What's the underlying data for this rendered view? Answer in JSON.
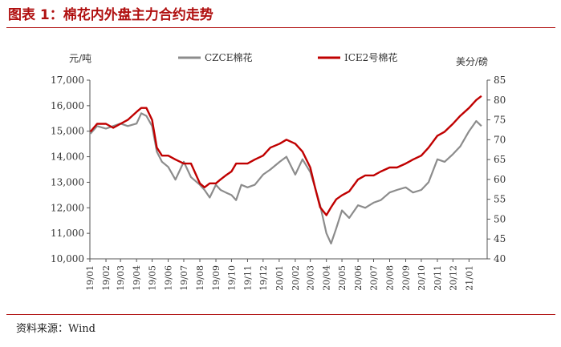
{
  "title": "图表 1：棉花内外盘主力合约走势",
  "source": "资料来源：Wind",
  "colors": {
    "title": "#b01010",
    "czce": "#8c8c8c",
    "ice2": "#c00000"
  },
  "chart_data": {
    "type": "line",
    "left_axis_unit": "元/吨",
    "right_axis_unit": "美分/磅",
    "legend_placement": "top",
    "ylim_left": [
      10000,
      17000
    ],
    "ylim_right": [
      40,
      85
    ],
    "yticks_left": [
      "10,000",
      "11,000",
      "12,000",
      "13,000",
      "14,000",
      "15,000",
      "16,000",
      "17,000"
    ],
    "yticks_right": [
      "40",
      "45",
      "50",
      "55",
      "60",
      "65",
      "70",
      "75",
      "80",
      "85"
    ],
    "x_ticks": [
      "19/01",
      "19/02",
      "19/03",
      "19/04",
      "19/05",
      "19/06",
      "19/07",
      "19/08",
      "19/09",
      "19/10",
      "19/11",
      "19/12",
      "20/01",
      "20/02",
      "20/03",
      "20/04",
      "20/05",
      "20/06",
      "20/07",
      "20/08",
      "20/09",
      "20/10",
      "20/11",
      "20/12",
      "21/01"
    ],
    "grid": false,
    "series": [
      {
        "name": "CZCE棉花",
        "axis": "left",
        "x": [
          "2019-01-02",
          "2019-01-15",
          "2019-02-01",
          "2019-02-15",
          "2019-03-01",
          "2019-03-15",
          "2019-04-01",
          "2019-04-10",
          "2019-04-20",
          "2019-05-01",
          "2019-05-10",
          "2019-05-20",
          "2019-06-01",
          "2019-06-15",
          "2019-07-01",
          "2019-07-15",
          "2019-08-01",
          "2019-08-10",
          "2019-08-20",
          "2019-09-01",
          "2019-09-10",
          "2019-09-20",
          "2019-10-01",
          "2019-10-10",
          "2019-10-20",
          "2019-11-01",
          "2019-11-15",
          "2019-12-01",
          "2019-12-15",
          "2020-01-02",
          "2020-01-15",
          "2020-02-01",
          "2020-02-15",
          "2020-03-01",
          "2020-03-10",
          "2020-03-20",
          "2020-04-01",
          "2020-04-10",
          "2020-04-20",
          "2020-05-01",
          "2020-05-15",
          "2020-06-01",
          "2020-06-15",
          "2020-07-01",
          "2020-07-15",
          "2020-08-01",
          "2020-08-15",
          "2020-09-01",
          "2020-09-15",
          "2020-10-01",
          "2020-10-15",
          "2020-11-01",
          "2020-11-15",
          "2020-12-01",
          "2020-12-15",
          "2021-01-01",
          "2021-01-15",
          "2021-01-25"
        ],
        "values": [
          14900,
          15200,
          15100,
          15200,
          15300,
          15200,
          15300,
          15700,
          15600,
          15200,
          14200,
          13800,
          13600,
          13100,
          13800,
          13200,
          12900,
          12700,
          12400,
          12900,
          12700,
          12600,
          12500,
          12300,
          12900,
          12800,
          12900,
          13300,
          13500,
          13800,
          14000,
          13300,
          13900,
          13400,
          12800,
          12100,
          11000,
          10600,
          11200,
          11900,
          11600,
          12100,
          12000,
          12200,
          12300,
          12600,
          12700,
          12800,
          12600,
          12700,
          13000,
          13900,
          13800,
          14100,
          14400,
          15000,
          15400,
          15200
        ]
      },
      {
        "name": "ICE2号棉花",
        "axis": "right",
        "x": [
          "2019-01-02",
          "2019-01-15",
          "2019-02-01",
          "2019-02-15",
          "2019-03-01",
          "2019-03-15",
          "2019-04-01",
          "2019-04-10",
          "2019-04-20",
          "2019-05-01",
          "2019-05-10",
          "2019-05-20",
          "2019-06-01",
          "2019-06-15",
          "2019-07-01",
          "2019-07-15",
          "2019-08-01",
          "2019-08-10",
          "2019-08-20",
          "2019-09-01",
          "2019-09-10",
          "2019-09-20",
          "2019-10-01",
          "2019-10-10",
          "2019-10-20",
          "2019-11-01",
          "2019-11-15",
          "2019-12-01",
          "2019-12-15",
          "2020-01-02",
          "2020-01-15",
          "2020-02-01",
          "2020-02-15",
          "2020-03-01",
          "2020-03-10",
          "2020-03-20",
          "2020-04-01",
          "2020-04-10",
          "2020-04-20",
          "2020-05-01",
          "2020-05-15",
          "2020-06-01",
          "2020-06-15",
          "2020-07-01",
          "2020-07-15",
          "2020-08-01",
          "2020-08-15",
          "2020-09-01",
          "2020-09-15",
          "2020-10-01",
          "2020-10-15",
          "2020-11-01",
          "2020-11-15",
          "2020-12-01",
          "2020-12-15",
          "2021-01-01",
          "2021-01-15",
          "2021-01-25"
        ],
        "values": [
          72,
          74,
          74,
          73,
          74,
          75,
          77,
          78,
          78,
          75,
          68,
          66,
          66,
          65,
          64,
          64,
          59,
          58,
          59,
          59,
          60,
          61,
          62,
          64,
          64,
          64,
          65,
          66,
          68,
          69,
          70,
          69,
          67,
          63,
          58,
          53,
          51,
          53,
          55,
          56,
          57,
          60,
          61,
          61,
          62,
          63,
          63,
          64,
          65,
          66,
          68,
          71,
          72,
          74,
          76,
          78,
          80,
          81
        ]
      }
    ]
  }
}
